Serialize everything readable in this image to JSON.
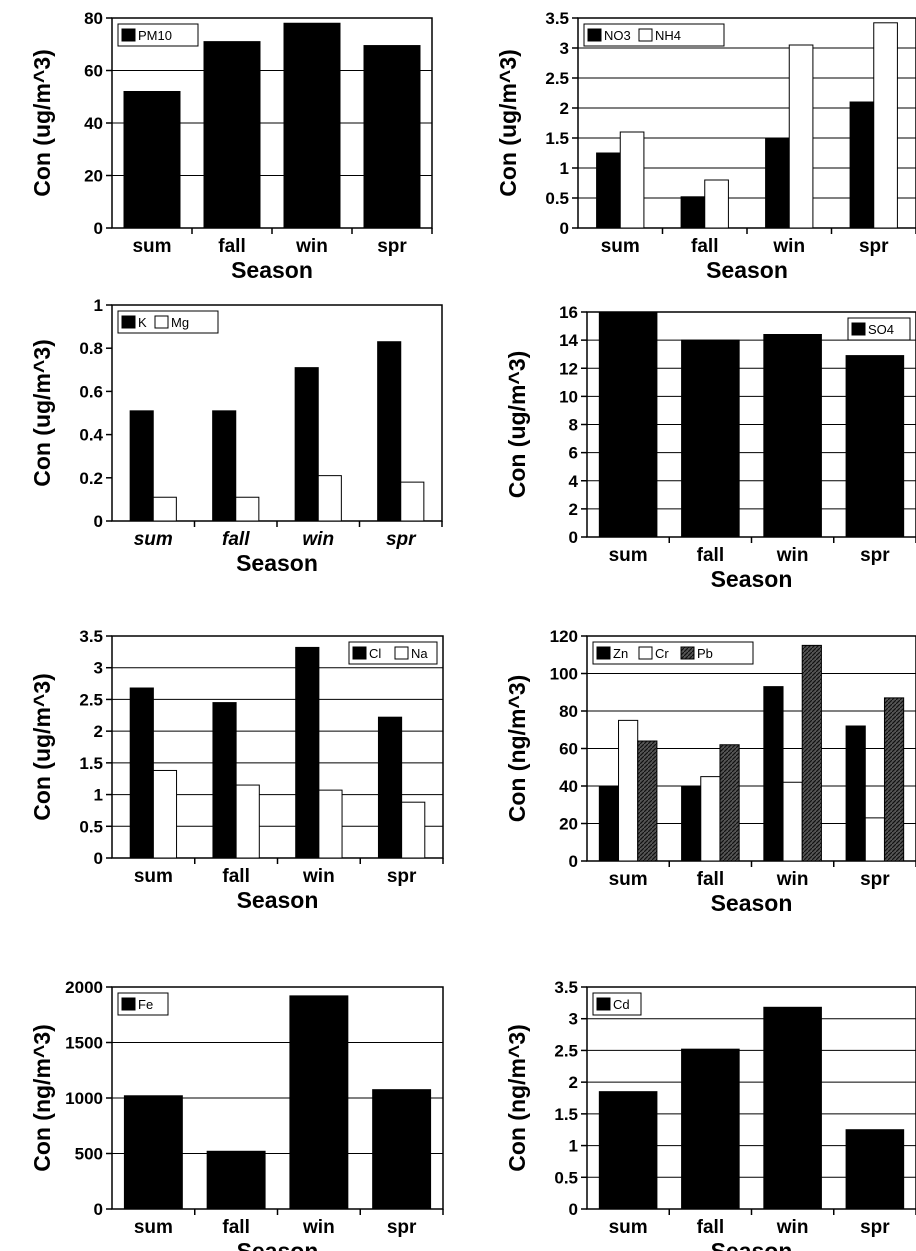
{
  "colors": {
    "black_bar": "#000000",
    "white_bar": "#ffffff",
    "hatched_bar": "#333333",
    "axis": "#000000",
    "grid": "#000000"
  },
  "chart_data": [
    {
      "type": "bar",
      "ylabel": "Con (ug/m^3)",
      "xlabel": "Season",
      "categories": [
        "sum",
        "fall",
        "win",
        "spr"
      ],
      "ylim": [
        0,
        80
      ],
      "yticks": [
        "0",
        "20",
        "40",
        "60",
        "80"
      ],
      "grid": true,
      "legend_position": "top-left",
      "series": [
        {
          "name": "PM10",
          "style": "black",
          "values": [
            52,
            71,
            78,
            69.5
          ]
        }
      ]
    },
    {
      "type": "bar",
      "ylabel": "Con (ug/m^3)",
      "xlabel": "Season",
      "categories": [
        "sum",
        "fall",
        "win",
        "spr"
      ],
      "ylim": [
        0,
        3.5
      ],
      "yticks": [
        "0",
        "0.5",
        "1",
        "1.5",
        "2",
        "2.5",
        "3",
        "3.5"
      ],
      "grid": true,
      "legend_position": "top-left",
      "series": [
        {
          "name": "NO3",
          "style": "black",
          "values": [
            1.25,
            0.52,
            1.5,
            2.1
          ]
        },
        {
          "name": "NH4",
          "style": "white",
          "values": [
            1.6,
            0.8,
            3.05,
            3.42
          ]
        }
      ]
    },
    {
      "type": "bar",
      "ylabel": "Con (ug/m^3)",
      "xlabel": "Season",
      "categories": [
        "sum",
        "fall",
        "win",
        "spr"
      ],
      "category_style": "italic",
      "ylim": [
        0,
        1
      ],
      "yticks": [
        "0",
        "0.2",
        "0.4",
        "0.6",
        "0.8",
        "1"
      ],
      "grid": false,
      "legend_position": "top-left",
      "series": [
        {
          "name": "K",
          "style": "black",
          "values": [
            0.51,
            0.51,
            0.71,
            0.83
          ]
        },
        {
          "name": "Mg",
          "style": "white",
          "values": [
            0.11,
            0.11,
            0.21,
            0.18
          ]
        }
      ]
    },
    {
      "type": "bar",
      "ylabel": "Con (ug/m^3)",
      "xlabel": "Season",
      "categories": [
        "sum",
        "fall",
        "win",
        "spr"
      ],
      "ylim": [
        0,
        16
      ],
      "yticks": [
        "0",
        "2",
        "4",
        "6",
        "8",
        "10",
        "12",
        "14",
        "16"
      ],
      "grid": true,
      "legend_position": "top-right",
      "series": [
        {
          "name": "SO4",
          "style": "black",
          "values": [
            16,
            14,
            14.4,
            12.9
          ]
        }
      ]
    },
    {
      "type": "bar",
      "ylabel": "Con (ug/m^3)",
      "xlabel": "Season",
      "categories": [
        "sum",
        "fall",
        "win",
        "spr"
      ],
      "ylim": [
        0,
        3.5
      ],
      "yticks": [
        "0",
        "0.5",
        "1",
        "1.5",
        "2",
        "2.5",
        "3",
        "3.5"
      ],
      "grid": true,
      "legend_position": "top-right",
      "series": [
        {
          "name": "Cl",
          "style": "black",
          "values": [
            2.68,
            2.45,
            3.32,
            2.22
          ]
        },
        {
          "name": "Na",
          "style": "white",
          "values": [
            1.38,
            1.15,
            1.07,
            0.88
          ]
        }
      ]
    },
    {
      "type": "bar",
      "ylabel": "Con (ng/m^3)",
      "xlabel": "Season",
      "categories": [
        "sum",
        "fall",
        "win",
        "spr"
      ],
      "ylim": [
        0,
        120
      ],
      "yticks": [
        "0",
        "20",
        "40",
        "60",
        "80",
        "100",
        "120"
      ],
      "grid": true,
      "legend_position": "top-left",
      "series": [
        {
          "name": "Zn",
          "style": "black",
          "values": [
            40,
            40,
            93,
            72
          ]
        },
        {
          "name": "Cr",
          "style": "white",
          "values": [
            75,
            45,
            42,
            23
          ]
        },
        {
          "name": "Pb",
          "style": "hatched",
          "values": [
            64,
            62,
            115,
            87
          ]
        }
      ]
    },
    {
      "type": "bar",
      "ylabel": "Con (ng/m^3)",
      "xlabel": "Season",
      "categories": [
        "sum",
        "fall",
        "win",
        "spr"
      ],
      "ylim": [
        0,
        2000
      ],
      "yticks": [
        "0",
        "500",
        "1000",
        "1500",
        "2000"
      ],
      "grid": true,
      "legend_position": "top-left",
      "series": [
        {
          "name": "Fe",
          "style": "black",
          "values": [
            1020,
            520,
            1920,
            1075
          ]
        }
      ]
    },
    {
      "type": "bar",
      "ylabel": "Con (ng/m^3)",
      "xlabel": "Season",
      "categories": [
        "sum",
        "fall",
        "win",
        "spr"
      ],
      "ylim": [
        0,
        3.5
      ],
      "yticks": [
        "0",
        "0.5",
        "1",
        "1.5",
        "2",
        "2.5",
        "3",
        "3.5"
      ],
      "grid": true,
      "legend_position": "top-left",
      "series": [
        {
          "name": "Cd",
          "style": "black",
          "values": [
            1.85,
            2.52,
            3.18,
            1.25
          ]
        }
      ]
    }
  ]
}
